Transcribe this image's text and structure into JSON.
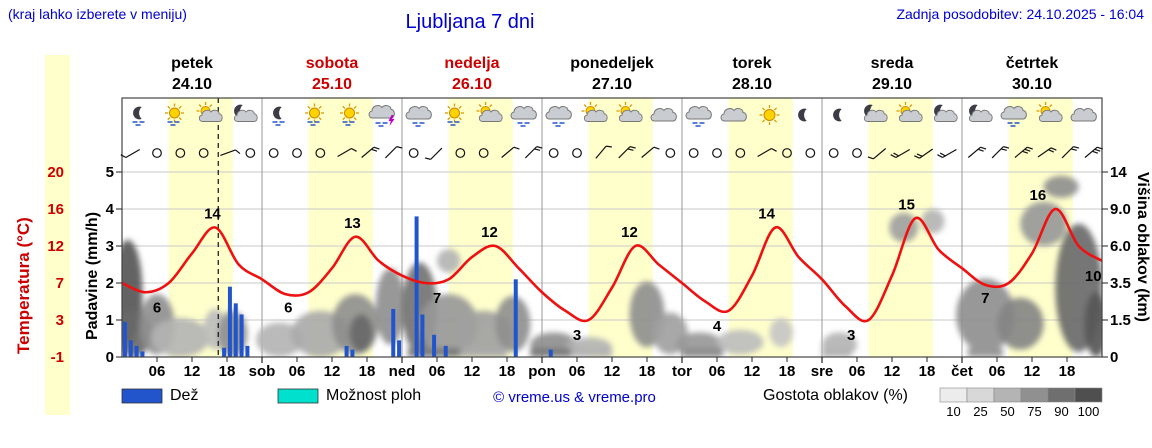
{
  "header": {
    "hint": "(kraj lahko izberete v meniju)",
    "title": "Ljubljana 7 dni",
    "updated": "Zadnja posodobitev: 24.10.2025 - 16:04"
  },
  "palette": {
    "blue_text": "#0000cc",
    "red": "#cc0000",
    "temp_curve": "#ee1111",
    "rain_bar": "#2255cc",
    "showers": "#00e0cc",
    "day_band": "#ffffcc"
  },
  "day_headers": [
    {
      "name": "petek",
      "date": "24.10",
      "red": false
    },
    {
      "name": "sobota",
      "date": "25.10",
      "red": true
    },
    {
      "name": "nedelja",
      "date": "26.10",
      "red": true
    },
    {
      "name": "ponedeljek",
      "date": "27.10",
      "red": false
    },
    {
      "name": "torek",
      "date": "28.10",
      "red": false
    },
    {
      "name": "sreda",
      "date": "29.10",
      "red": false
    },
    {
      "name": "četrtek",
      "date": "30.10",
      "red": false
    }
  ],
  "y_axes": {
    "temperature": {
      "title": "Temperatura (°C)",
      "ticks": [
        "20",
        "16",
        "12",
        "7",
        "3",
        "-1"
      ]
    },
    "precipitation": {
      "title": "Padavine (mm/h)",
      "ticks": [
        "5",
        "4",
        "3",
        "2",
        "1",
        "0"
      ]
    },
    "cloud_height": {
      "title": "Višina oblakov (km)",
      "ticks": [
        "14",
        "9.0",
        "6.0",
        "3.5",
        "1.5",
        "0"
      ]
    }
  },
  "x_axis": {
    "hours": [
      "06",
      "12",
      "18"
    ],
    "day_abbr": [
      "sob",
      "ned",
      "pon",
      "tor",
      "sre",
      "čet"
    ]
  },
  "legend": {
    "rain_label": "Dež",
    "showers_label": "Možnost ploh",
    "copyright": "© vreme.us & vreme.pro",
    "density_label": "Gostota oblakov (%)",
    "density_scale": {
      "values": [
        "10",
        "25",
        "50",
        "75",
        "90",
        "100"
      ],
      "colors": [
        "#ececec",
        "#d8d8d8",
        "#b4b4b4",
        "#909090",
        "#6f6f6f",
        "#4f4f4f"
      ]
    }
  },
  "chart_data": {
    "type": "line+bar+area (meteogram)",
    "x_unit": "hours since 2025-10-24 00:00",
    "x_range": [
      0,
      168
    ],
    "daytime_band": [
      8,
      19
    ],
    "now_line_hour": 16.5,
    "temperature_axis_c": [
      -1,
      3,
      7,
      12,
      16,
      20
    ],
    "precip_axis_mm": [
      0,
      5
    ],
    "cloud_axis_km": [
      0,
      1.5,
      3.5,
      6,
      9,
      14
    ],
    "temperature_c": {
      "t": [
        0,
        4,
        8,
        12,
        16,
        20,
        24,
        28,
        32,
        36,
        40,
        44,
        48,
        52,
        56,
        60,
        64,
        68,
        72,
        76,
        80,
        84,
        88,
        92,
        96,
        100,
        104,
        108,
        112,
        116,
        120,
        124,
        128,
        132,
        136,
        140,
        144,
        148,
        152,
        156,
        160,
        164,
        168
      ],
      "v": [
        7,
        6,
        7,
        11,
        14,
        9.5,
        7.5,
        5.8,
        6,
        9,
        13,
        10,
        8,
        7,
        7.5,
        10.5,
        12,
        9,
        6,
        4,
        3,
        6.5,
        12,
        9.5,
        7,
        5,
        4,
        8,
        14,
        10.5,
        7.5,
        4.5,
        3,
        8,
        15,
        11.5,
        9,
        6.8,
        7,
        11,
        16,
        12,
        10
      ]
    },
    "temperature_labels": [
      {
        "t": 6,
        "v": 6,
        "pos": "below"
      },
      {
        "t": 15.5,
        "v": 14,
        "pos": "above"
      },
      {
        "t": 28.5,
        "v": 6,
        "pos": "below"
      },
      {
        "t": 39.5,
        "v": 13,
        "pos": "above"
      },
      {
        "t": 54,
        "v": 7,
        "pos": "below"
      },
      {
        "t": 63,
        "v": 12,
        "pos": "above"
      },
      {
        "t": 78,
        "v": 3,
        "pos": "below"
      },
      {
        "t": 87,
        "v": 12,
        "pos": "above"
      },
      {
        "t": 102,
        "v": 4,
        "pos": "below"
      },
      {
        "t": 110.5,
        "v": 14,
        "pos": "above"
      },
      {
        "t": 125,
        "v": 3,
        "pos": "below"
      },
      {
        "t": 134.5,
        "v": 15,
        "pos": "above"
      },
      {
        "t": 148,
        "v": 7,
        "pos": "below"
      },
      {
        "t": 157,
        "v": 16,
        "pos": "above"
      },
      {
        "t": 166.5,
        "v": 10,
        "pos": "below"
      }
    ],
    "precipitation_mm": [
      {
        "t": 0.5,
        "h": 0.95
      },
      {
        "t": 1.5,
        "h": 0.45
      },
      {
        "t": 2.5,
        "h": 0.3
      },
      {
        "t": 3.5,
        "h": 0.15
      },
      {
        "t": 17.5,
        "h": 0.25
      },
      {
        "t": 18.5,
        "h": 1.9
      },
      {
        "t": 19.5,
        "h": 1.45
      },
      {
        "t": 20.5,
        "h": 1.15
      },
      {
        "t": 21.5,
        "h": 0.3
      },
      {
        "t": 38.5,
        "h": 0.3
      },
      {
        "t": 39.5,
        "h": 0.2
      },
      {
        "t": 46.5,
        "h": 1.3
      },
      {
        "t": 47.5,
        "h": 0.45
      },
      {
        "t": 50.5,
        "h": 3.8
      },
      {
        "t": 51.5,
        "h": 1.15
      },
      {
        "t": 53.5,
        "h": 0.6
      },
      {
        "t": 55.5,
        "h": 0.3
      },
      {
        "t": 67.5,
        "h": 2.1
      },
      {
        "t": 73.5,
        "h": 0.2
      }
    ],
    "weather_icons": [
      {
        "t": 3,
        "type": "moon-rain"
      },
      {
        "t": 9,
        "type": "sun-rain"
      },
      {
        "t": 15,
        "type": "sun-cloud"
      },
      {
        "t": 21,
        "type": "moon-cloud"
      },
      {
        "t": 27,
        "type": "moon-rain"
      },
      {
        "t": 33,
        "type": "sun-rain"
      },
      {
        "t": 39,
        "type": "sun-rain"
      },
      {
        "t": 45,
        "type": "thunder-rain"
      },
      {
        "t": 51,
        "type": "cloud-rain"
      },
      {
        "t": 57,
        "type": "sun-rain"
      },
      {
        "t": 63,
        "type": "sun-cloud"
      },
      {
        "t": 69,
        "type": "cloud-rain"
      },
      {
        "t": 75,
        "type": "cloud-rain"
      },
      {
        "t": 81,
        "type": "sun-cloud"
      },
      {
        "t": 87,
        "type": "sun-cloud"
      },
      {
        "t": 93,
        "type": "cloud"
      },
      {
        "t": 99,
        "type": "cloud-rain"
      },
      {
        "t": 105,
        "type": "cloud"
      },
      {
        "t": 111,
        "type": "sun"
      },
      {
        "t": 117,
        "type": "moon"
      },
      {
        "t": 123,
        "type": "moon"
      },
      {
        "t": 129,
        "type": "moon-cloud"
      },
      {
        "t": 135,
        "type": "sun-cloud"
      },
      {
        "t": 141,
        "type": "moon-cloud"
      },
      {
        "t": 147,
        "type": "moon-cloud"
      },
      {
        "t": 153,
        "type": "cloud-rain"
      },
      {
        "t": 159,
        "type": "sun-cloud"
      },
      {
        "t": 165,
        "type": "cloud"
      }
    ],
    "wind": [
      {
        "t": 2,
        "type": "barb",
        "dir": 240,
        "ticks": 1
      },
      {
        "t": 6,
        "type": "calm"
      },
      {
        "t": 10,
        "type": "calm"
      },
      {
        "t": 14,
        "type": "calm"
      },
      {
        "t": 18,
        "type": "barb",
        "dir": 70,
        "ticks": 1
      },
      {
        "t": 22,
        "type": "calm"
      },
      {
        "t": 26,
        "type": "calm"
      },
      {
        "t": 30,
        "type": "calm"
      },
      {
        "t": 34,
        "type": "calm"
      },
      {
        "t": 38,
        "type": "barb",
        "dir": 60,
        "ticks": 1
      },
      {
        "t": 42,
        "type": "barb",
        "dir": 50,
        "ticks": 2
      },
      {
        "t": 46,
        "type": "barb",
        "dir": 45,
        "ticks": 1
      },
      {
        "t": 50,
        "type": "calm"
      },
      {
        "t": 54,
        "type": "barb",
        "dir": 225,
        "ticks": 1
      },
      {
        "t": 58,
        "type": "calm"
      },
      {
        "t": 62,
        "type": "calm"
      },
      {
        "t": 66,
        "type": "barb",
        "dir": 50,
        "ticks": 1
      },
      {
        "t": 70,
        "type": "barb",
        "dir": 45,
        "ticks": 2
      },
      {
        "t": 74,
        "type": "calm"
      },
      {
        "t": 78,
        "type": "calm"
      },
      {
        "t": 82,
        "type": "barb",
        "dir": 40,
        "ticks": 1
      },
      {
        "t": 86,
        "type": "barb",
        "dir": 45,
        "ticks": 2
      },
      {
        "t": 90,
        "type": "barb",
        "dir": 50,
        "ticks": 1
      },
      {
        "t": 94,
        "type": "calm"
      },
      {
        "t": 98,
        "type": "calm"
      },
      {
        "t": 102,
        "type": "calm"
      },
      {
        "t": 106,
        "type": "calm"
      },
      {
        "t": 110,
        "type": "barb",
        "dir": 60,
        "ticks": 1
      },
      {
        "t": 114,
        "type": "calm"
      },
      {
        "t": 118,
        "type": "calm"
      },
      {
        "t": 122,
        "type": "calm"
      },
      {
        "t": 126,
        "type": "calm"
      },
      {
        "t": 130,
        "type": "barb",
        "dir": 230,
        "ticks": 1
      },
      {
        "t": 134,
        "type": "barb",
        "dir": 240,
        "ticks": 2
      },
      {
        "t": 138,
        "type": "barb",
        "dir": 235,
        "ticks": 2
      },
      {
        "t": 142,
        "type": "barb",
        "dir": 240,
        "ticks": 2
      },
      {
        "t": 146,
        "type": "barb",
        "dir": 50,
        "ticks": 2
      },
      {
        "t": 150,
        "type": "barb",
        "dir": 45,
        "ticks": 2
      },
      {
        "t": 154,
        "type": "barb",
        "dir": 50,
        "ticks": 3
      },
      {
        "t": 158,
        "type": "barb",
        "dir": 55,
        "ticks": 2
      },
      {
        "t": 162,
        "type": "barb",
        "dir": 45,
        "ticks": 2
      },
      {
        "t": 166,
        "type": "barb",
        "dir": 50,
        "ticks": 3
      }
    ],
    "clouds": [
      {
        "t": 1,
        "km": 3.5,
        "rt": 2.5,
        "rkm": 3.0,
        "density": 0.8
      },
      {
        "t": 2,
        "km": 1.0,
        "rt": 3.0,
        "rkm": 1.0,
        "density": 0.7
      },
      {
        "t": 6,
        "km": 1.5,
        "rt": 3.0,
        "rkm": 1.4,
        "density": 0.5
      },
      {
        "t": 10,
        "km": 0.8,
        "rt": 5.0,
        "rkm": 0.8,
        "density": 0.3
      },
      {
        "t": 16,
        "km": 1.2,
        "rt": 2.0,
        "rkm": 0.9,
        "density": 0.25
      },
      {
        "t": 19,
        "km": 1.0,
        "rt": 2.5,
        "rkm": 1.0,
        "density": 0.5
      },
      {
        "t": 27,
        "km": 0.7,
        "rt": 4.0,
        "rkm": 0.7,
        "density": 0.3
      },
      {
        "t": 34,
        "km": 1.0,
        "rt": 5.0,
        "rkm": 1.0,
        "density": 0.35
      },
      {
        "t": 40,
        "km": 1.5,
        "rt": 4.0,
        "rkm": 1.4,
        "density": 0.5
      },
      {
        "t": 41,
        "km": 1.0,
        "rt": 2.0,
        "rkm": 0.8,
        "density": 0.7
      },
      {
        "t": 46,
        "km": 2.5,
        "rt": 2.5,
        "rkm": 2.0,
        "density": 0.5
      },
      {
        "t": 51,
        "km": 2.5,
        "rt": 3.0,
        "rkm": 2.4,
        "density": 0.65
      },
      {
        "t": 56,
        "km": 5.0,
        "rt": 2.0,
        "rkm": 0.8,
        "density": 0.3
      },
      {
        "t": 56,
        "km": 1.5,
        "rt": 5.0,
        "rkm": 1.4,
        "density": 0.45
      },
      {
        "t": 62,
        "km": 1.0,
        "rt": 5.0,
        "rkm": 1.0,
        "density": 0.4
      },
      {
        "t": 67,
        "km": 1.5,
        "rt": 3.0,
        "rkm": 1.3,
        "density": 0.5
      },
      {
        "t": 74,
        "km": 0.5,
        "rt": 4.0,
        "rkm": 0.5,
        "density": 0.5
      },
      {
        "t": 80,
        "km": 0.4,
        "rt": 4.0,
        "rkm": 0.4,
        "density": 0.3
      },
      {
        "t": 90,
        "km": 2.0,
        "rt": 3.0,
        "rkm": 1.6,
        "density": 0.5
      },
      {
        "t": 94,
        "km": 1.0,
        "rt": 3.0,
        "rkm": 0.9,
        "density": 0.4
      },
      {
        "t": 99,
        "km": 0.5,
        "rt": 4.0,
        "rkm": 0.5,
        "density": 0.45
      },
      {
        "t": 106,
        "km": 0.6,
        "rt": 4.0,
        "rkm": 0.5,
        "density": 0.25
      },
      {
        "t": 113,
        "km": 1.0,
        "rt": 2.0,
        "rkm": 0.6,
        "density": 0.2
      },
      {
        "t": 123,
        "km": 0.5,
        "rt": 3.0,
        "rkm": 0.5,
        "density": 0.3
      },
      {
        "t": 134,
        "km": 7.5,
        "rt": 2.5,
        "rkm": 1.2,
        "density": 0.4
      },
      {
        "t": 139,
        "km": 8.0,
        "rt": 2.0,
        "rkm": 1.0,
        "density": 0.3
      },
      {
        "t": 148,
        "km": 2.0,
        "rt": 5.0,
        "rkm": 1.8,
        "density": 0.5
      },
      {
        "t": 154,
        "km": 1.5,
        "rt": 4.0,
        "rkm": 1.2,
        "density": 0.55
      },
      {
        "t": 158,
        "km": 8.0,
        "rt": 4.0,
        "rkm": 2.0,
        "density": 0.45
      },
      {
        "t": 161,
        "km": 12.0,
        "rt": 3.0,
        "rkm": 1.5,
        "density": 0.5
      },
      {
        "t": 164,
        "km": 4.0,
        "rt": 4.0,
        "rkm": 3.8,
        "density": 0.7
      },
      {
        "t": 167,
        "km": 1.5,
        "rt": 2.0,
        "rkm": 1.5,
        "density": 0.8
      }
    ],
    "ground_clouds": [
      {
        "t0": 49,
        "t1": 58,
        "density": 0.6
      },
      {
        "t0": 58,
        "t1": 66,
        "density": 0.35
      },
      {
        "t0": 70,
        "t1": 77,
        "density": 0.6
      },
      {
        "t0": 77,
        "t1": 84,
        "density": 0.3
      },
      {
        "t0": 96,
        "t1": 103,
        "density": 0.5
      },
      {
        "t0": 120,
        "t1": 125,
        "density": 0.3
      },
      {
        "t0": 145,
        "t1": 151,
        "density": 0.45
      }
    ]
  }
}
